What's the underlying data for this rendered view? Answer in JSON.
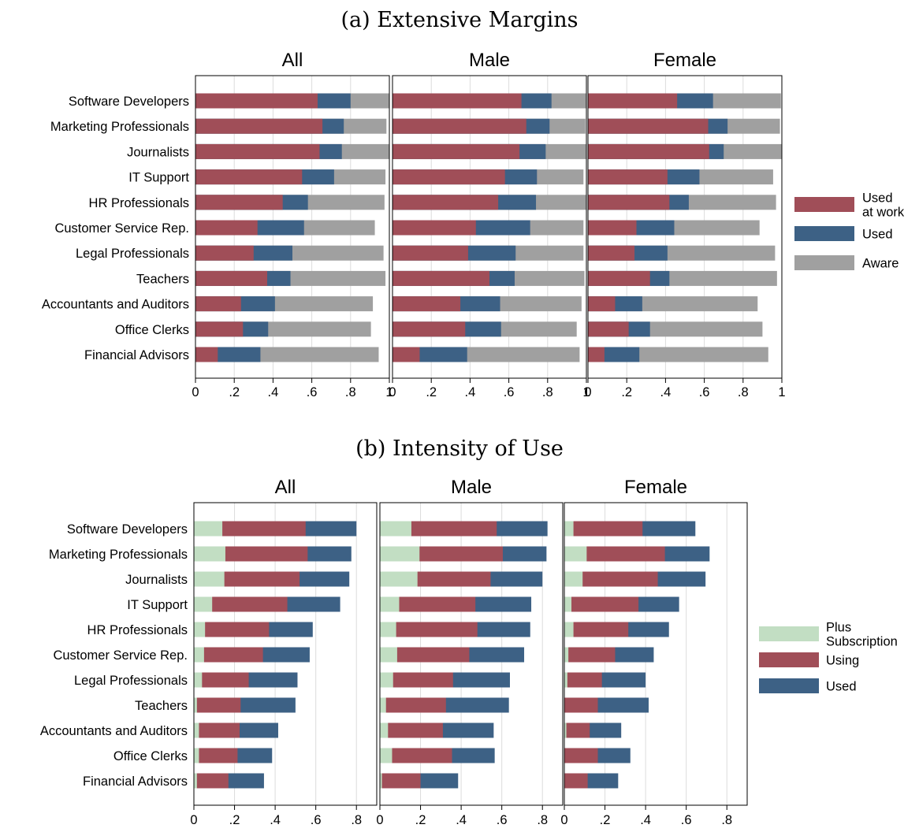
{
  "chart_data": [
    {
      "type": "bar",
      "orientation": "horizontal",
      "stacked": true,
      "title": "(a) Extensive Margins",
      "panels": [
        "All",
        "Male",
        "Female"
      ],
      "categories": [
        "Software Developers",
        "Marketing Professionals",
        "Journalists",
        "IT Support",
        "HR Professionals",
        "Customer Service Rep.",
        "Legal Professionals",
        "Teachers",
        "Accountants and Auditors",
        "Office Clerks",
        "Financial Advisors"
      ],
      "xlim": [
        0,
        1
      ],
      "xticks": [
        0,
        0.2,
        0.4,
        0.6,
        0.8,
        1
      ],
      "xtick_labels": [
        "0",
        ".2",
        ".4",
        ".6",
        ".8",
        "1"
      ],
      "grid": true,
      "legend_position": "right",
      "series": [
        {
          "name": "Used at work",
          "legend_lines": [
            "Used",
            "at work"
          ],
          "color": "#a04e58",
          "values": {
            "All": [
              0.63,
              0.655,
              0.64,
              0.55,
              0.45,
              0.32,
              0.3,
              0.37,
              0.235,
              0.245,
              0.115
            ],
            "Male": [
              0.665,
              0.69,
              0.655,
              0.58,
              0.545,
              0.43,
              0.39,
              0.5,
              0.35,
              0.375,
              0.14
            ],
            "Female": [
              0.46,
              0.62,
              0.625,
              0.41,
              0.42,
              0.25,
              0.24,
              0.32,
              0.14,
              0.21,
              0.085
            ]
          }
        },
        {
          "name": "Used",
          "legend_lines": [
            "Used"
          ],
          "color": "#3d6185",
          "values": {
            "All": [
              0.8,
              0.765,
              0.755,
              0.715,
              0.58,
              0.56,
              0.5,
              0.49,
              0.41,
              0.375,
              0.335
            ],
            "Male": [
              0.82,
              0.81,
              0.79,
              0.745,
              0.74,
              0.71,
              0.635,
              0.63,
              0.555,
              0.56,
              0.385
            ],
            "Female": [
              0.645,
              0.72,
              0.7,
              0.575,
              0.52,
              0.445,
              0.41,
              0.42,
              0.28,
              0.32,
              0.265
            ]
          }
        },
        {
          "name": "Aware",
          "legend_lines": [
            "Aware"
          ],
          "color": "#a0a0a0",
          "values": {
            "All": [
              1.0,
              0.985,
              1.0,
              0.98,
              0.975,
              0.925,
              0.97,
              0.98,
              0.915,
              0.905,
              0.945
            ],
            "Male": [
              1.0,
              0.995,
              1.0,
              0.985,
              1.0,
              0.985,
              0.985,
              0.99,
              0.975,
              0.95,
              0.965
            ],
            "Female": [
              0.995,
              0.99,
              1.0,
              0.955,
              0.97,
              0.885,
              0.965,
              0.975,
              0.875,
              0.9,
              0.93
            ]
          }
        }
      ]
    },
    {
      "type": "bar",
      "orientation": "horizontal",
      "stacked": true,
      "title": "(b) Intensity of Use",
      "panels": [
        "All",
        "Male",
        "Female"
      ],
      "categories": [
        "Software Developers",
        "Marketing Professionals",
        "Journalists",
        "IT Support",
        "HR Professionals",
        "Customer Service Rep.",
        "Legal Professionals",
        "Teachers",
        "Accountants and Auditors",
        "Office Clerks",
        "Financial Advisors"
      ],
      "xlim": [
        0,
        0.9
      ],
      "xticks": [
        0,
        0.2,
        0.4,
        0.6,
        0.8
      ],
      "xtick_labels": [
        "0",
        ".2",
        ".4",
        ".6",
        ".8"
      ],
      "grid": true,
      "legend_position": "right",
      "series": [
        {
          "name": "Plus Subscription",
          "legend_lines": [
            "Plus",
            "Subscription"
          ],
          "color": "#c2dec3",
          "values": {
            "All": [
              0.14,
              0.155,
              0.15,
              0.09,
              0.055,
              0.05,
              0.04,
              0.015,
              0.025,
              0.025,
              0.015
            ],
            "Male": [
              0.155,
              0.195,
              0.185,
              0.095,
              0.08,
              0.085,
              0.065,
              0.03,
              0.04,
              0.06,
              0.01
            ],
            "Female": [
              0.045,
              0.11,
              0.09,
              0.035,
              0.045,
              0.02,
              0.015,
              0.0,
              0.01,
              0.0,
              0.0
            ]
          }
        },
        {
          "name": "Using",
          "legend_lines": [
            "Using"
          ],
          "color": "#a04e58",
          "values": {
            "All": [
              0.55,
              0.56,
              0.52,
              0.46,
              0.37,
              0.34,
              0.27,
              0.23,
              0.225,
              0.215,
              0.17
            ],
            "Male": [
              0.575,
              0.605,
              0.545,
              0.47,
              0.48,
              0.44,
              0.36,
              0.325,
              0.31,
              0.355,
              0.2
            ],
            "Female": [
              0.385,
              0.495,
              0.46,
              0.365,
              0.315,
              0.25,
              0.185,
              0.165,
              0.125,
              0.165,
              0.115
            ]
          }
        },
        {
          "name": "Used",
          "legend_lines": [
            "Used"
          ],
          "color": "#3d6185",
          "values": {
            "All": [
              0.8,
              0.775,
              0.765,
              0.72,
              0.585,
              0.57,
              0.51,
              0.5,
              0.415,
              0.385,
              0.345
            ],
            "Male": [
              0.825,
              0.82,
              0.8,
              0.745,
              0.74,
              0.71,
              0.64,
              0.635,
              0.56,
              0.565,
              0.385
            ],
            "Female": [
              0.645,
              0.715,
              0.695,
              0.565,
              0.515,
              0.44,
              0.4,
              0.415,
              0.28,
              0.325,
              0.265
            ]
          }
        }
      ]
    }
  ]
}
